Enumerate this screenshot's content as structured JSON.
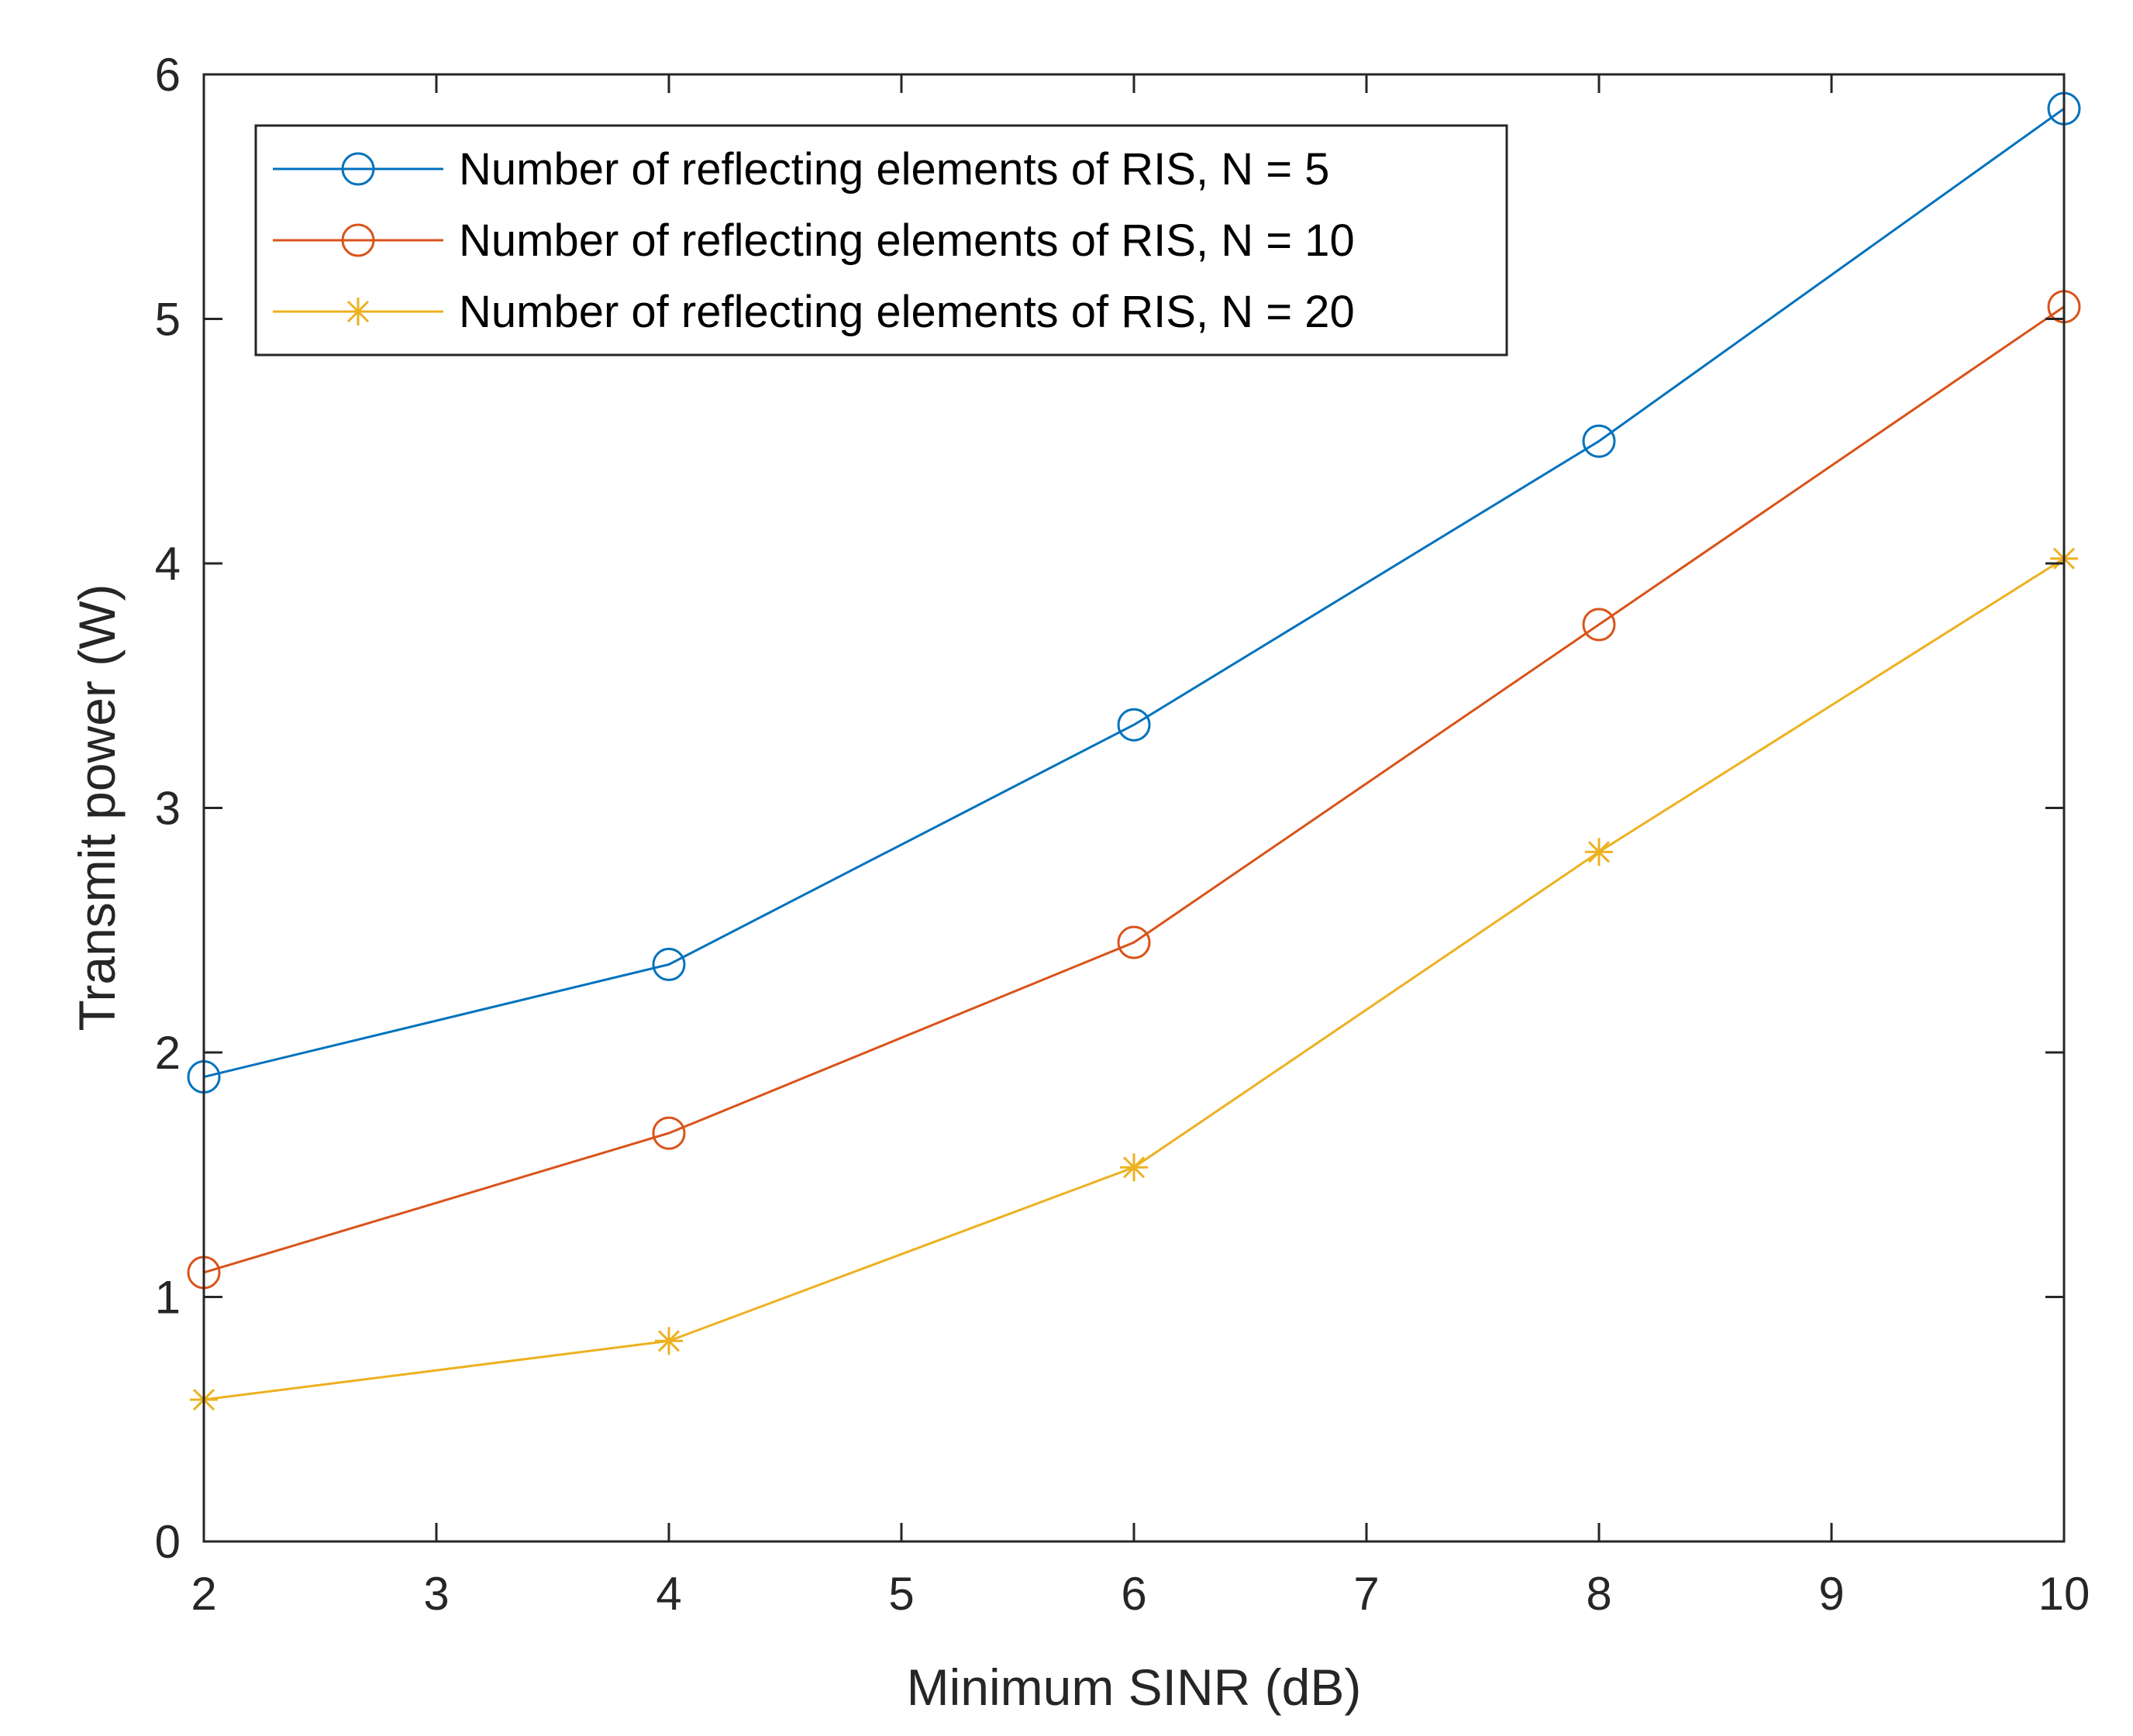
{
  "chart_data": {
    "type": "line",
    "title": "",
    "xlabel": "Minimum SINR (dB)",
    "ylabel": "Transmit power (W)",
    "xlim": [
      2,
      10
    ],
    "ylim": [
      0,
      6
    ],
    "xticks": [
      2,
      3,
      4,
      5,
      6,
      7,
      8,
      9,
      10
    ],
    "yticks": [
      0,
      1,
      2,
      3,
      4,
      5,
      6
    ],
    "grid": false,
    "legend_position": "top-left",
    "x": [
      2,
      4,
      6,
      8,
      10
    ],
    "series": [
      {
        "name": "Number of reflecting elements of RIS, N = 5",
        "color": "#0072BD",
        "marker": "circle",
        "values": [
          1.9,
          2.36,
          3.34,
          4.5,
          5.86
        ]
      },
      {
        "name": "Number of reflecting elements of RIS, N = 10",
        "color": "#D95319",
        "marker": "circle",
        "values": [
          1.1,
          1.67,
          2.45,
          3.75,
          5.05
        ]
      },
      {
        "name": "Number of reflecting elements of RIS, N = 20",
        "color": "#EDB120",
        "marker": "asterisk",
        "values": [
          0.58,
          0.82,
          1.53,
          2.82,
          4.02
        ]
      }
    ]
  }
}
